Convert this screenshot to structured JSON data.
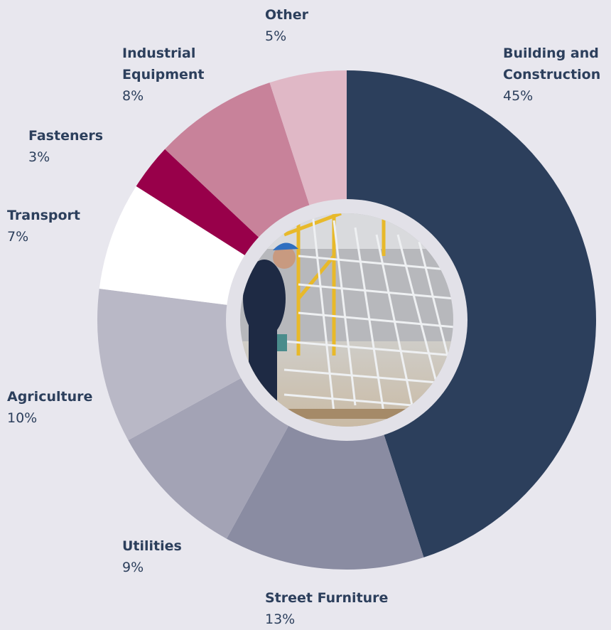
{
  "chart_data": {
    "type": "donut",
    "categories": [
      "Building and Construction",
      "Street Furniture",
      "Utilities",
      "Agriculture",
      "Transport",
      "Fasteners",
      "Industrial Equipment",
      "Other"
    ],
    "values": [
      45,
      13,
      9,
      10,
      7,
      3,
      8,
      5
    ],
    "value_labels": [
      "45%",
      "13%",
      "9%",
      "10%",
      "7%",
      "3%",
      "8%",
      "5%"
    ],
    "colors": [
      "#2c3f5c",
      "#8a8ca2",
      "#a3a3b5",
      "#b9b8c6",
      "#ffffff",
      "#98004a",
      "#c8829a",
      "#e0b8c6"
    ]
  }
}
